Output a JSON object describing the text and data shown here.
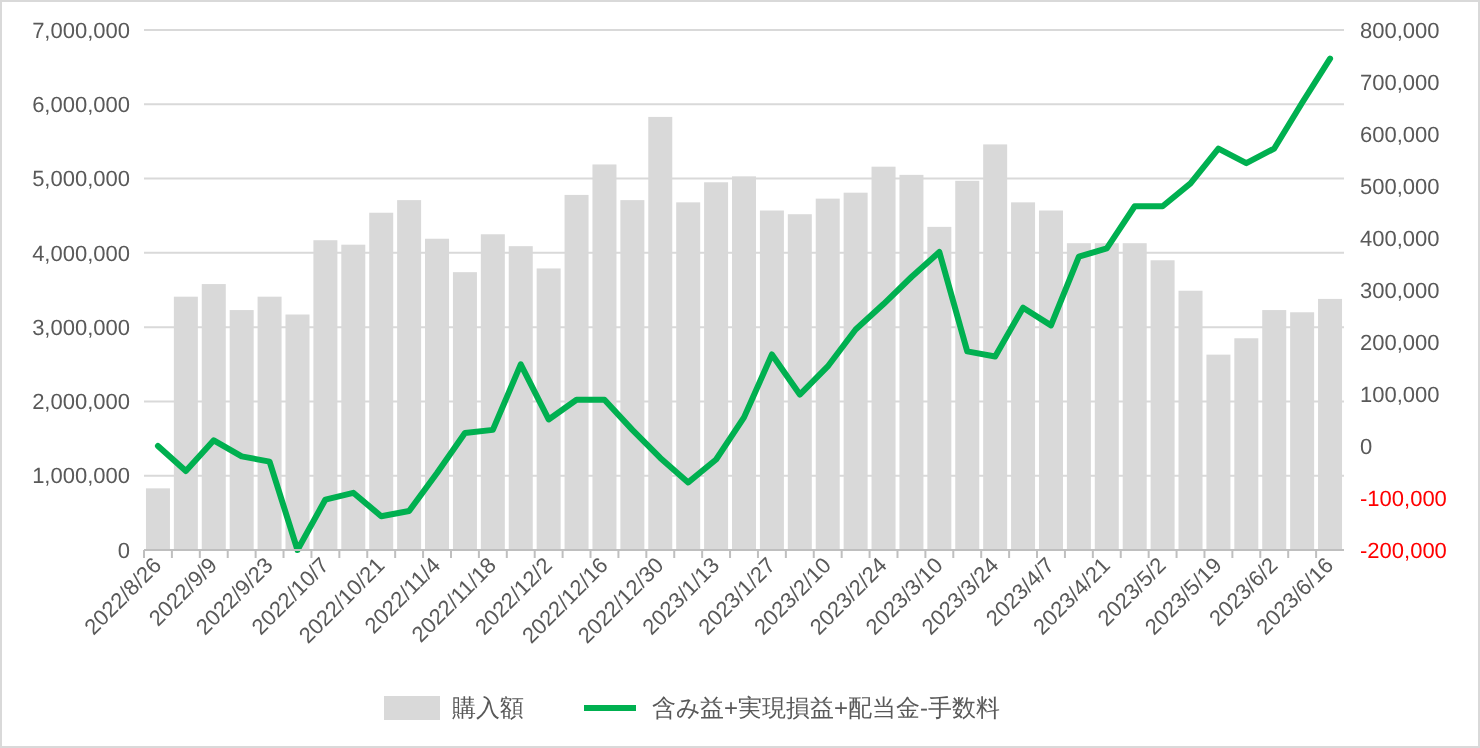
{
  "chart_data": {
    "type": "bar",
    "categories": [
      "2022/8/26",
      null,
      "2022/9/9",
      null,
      "2022/9/23",
      null,
      "2022/10/7",
      null,
      "2022/10/21",
      null,
      "2022/11/4",
      null,
      "2022/11/18",
      null,
      "2022/12/2",
      null,
      "2022/12/16",
      null,
      "2022/12/30",
      null,
      "2023/1/13",
      null,
      "2023/1/27",
      null,
      "2023/2/10",
      null,
      "2023/2/24",
      null,
      "2023/3/10",
      null,
      "2023/3/24",
      null,
      "2023/4/7",
      null,
      "2023/4/21",
      null,
      "2023/5/2",
      null,
      "2023/5/19",
      null,
      "2023/6/2",
      null,
      "2023/6/16"
    ],
    "series": [
      {
        "name": "購入額",
        "color": "#d9d9d9",
        "values": [
          830000,
          3410000,
          3580000,
          3230000,
          3410000,
          3170000,
          4170000,
          4110000,
          4540000,
          4710000,
          4190000,
          3740000,
          4250000,
          4090000,
          3790000,
          4780000,
          5190000,
          4710000,
          5830000,
          4680000,
          4950000,
          5030000,
          4570000,
          4520000,
          4730000,
          4810000,
          5160000,
          5050000,
          4350000,
          4970000,
          5460000,
          4680000,
          4570000,
          4130000,
          4130000,
          4130000,
          3900000,
          3490000,
          2630000,
          2850000,
          3230000,
          3200000,
          3380000
        ]
      },
      {
        "name": "含み益+実現損益+配当金-手数料",
        "type": "line",
        "axis": "y2",
        "color": "#00b050",
        "values": [
          0,
          -48000,
          11000,
          -20000,
          -30000,
          -200000,
          -103000,
          -90000,
          -135000,
          -125000,
          -52000,
          25000,
          31000,
          157000,
          51000,
          89000,
          89000,
          31000,
          -23000,
          -70000,
          -26000,
          55000,
          176000,
          99000,
          153000,
          224000,
          273000,
          325000,
          373000,
          182000,
          172000,
          266000,
          232000,
          364000,
          380000,
          461000,
          461000,
          505000,
          572000,
          544000,
          572000,
          660000,
          745000
        ]
      }
    ],
    "ylim": [
      0,
      7000000
    ],
    "yticks": [
      {
        "value": 0,
        "label": "0"
      },
      {
        "value": 1000000,
        "label": "1,000,000"
      },
      {
        "value": 2000000,
        "label": "2,000,000"
      },
      {
        "value": 3000000,
        "label": "3,000,000"
      },
      {
        "value": 4000000,
        "label": "4,000,000"
      },
      {
        "value": 5000000,
        "label": "5,000,000"
      },
      {
        "value": 6000000,
        "label": "6,000,000"
      },
      {
        "value": 7000000,
        "label": "7,000,000"
      }
    ],
    "y2lim": [
      -200000,
      800000
    ],
    "y2ticks": [
      {
        "value": -200000,
        "label": "-200,000"
      },
      {
        "value": -100000,
        "label": "-100,000"
      },
      {
        "value": 0,
        "label": "0"
      },
      {
        "value": 100000,
        "label": "100,000"
      },
      {
        "value": 200000,
        "label": "200,000"
      },
      {
        "value": 300000,
        "label": "300,000"
      },
      {
        "value": 400000,
        "label": "400,000"
      },
      {
        "value": 500000,
        "label": "500,000"
      },
      {
        "value": 600000,
        "label": "600,000"
      },
      {
        "value": 700000,
        "label": "700,000"
      },
      {
        "value": 800000,
        "label": "800,000"
      }
    ],
    "grid": "y",
    "legend": "bottom",
    "marker": "none",
    "line_style": "solid"
  }
}
